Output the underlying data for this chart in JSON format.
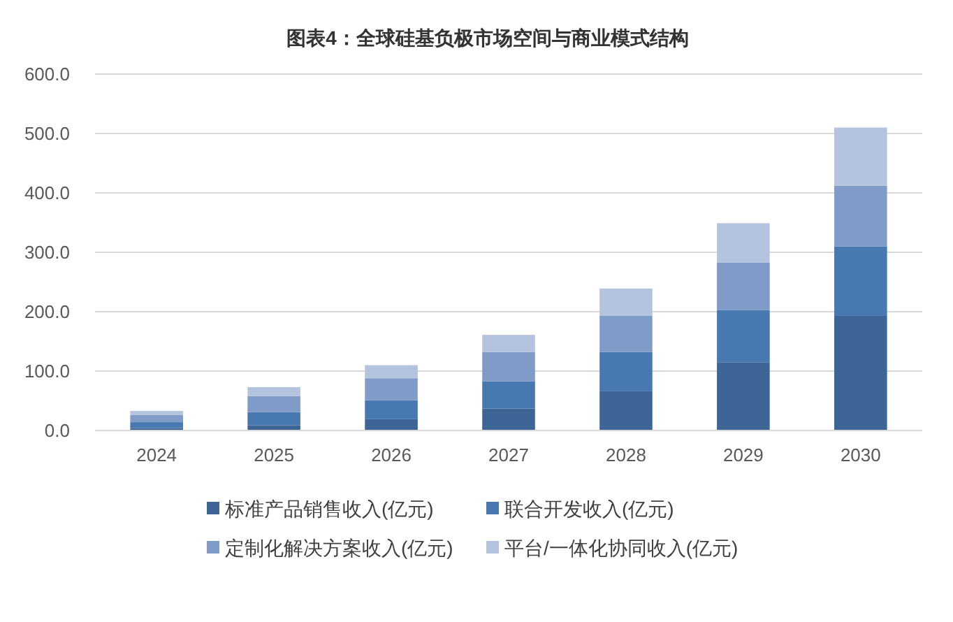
{
  "chart_data": {
    "type": "bar",
    "title": "图表4：全球硅基负极市场空间与商业模式结构",
    "categories": [
      "2024",
      "2025",
      "2026",
      "2027",
      "2028",
      "2029",
      "2030"
    ],
    "stacked": true,
    "ylim": [
      0,
      600
    ],
    "yticks": [
      {
        "value": 0,
        "label": "0.0"
      },
      {
        "value": 100,
        "label": "100.0"
      },
      {
        "value": 200,
        "label": "200.0"
      },
      {
        "value": 300,
        "label": "300.0"
      },
      {
        "value": 400,
        "label": "400.0"
      },
      {
        "value": 500,
        "label": "500.0"
      },
      {
        "value": 600,
        "label": "600.0"
      }
    ],
    "grid": "y",
    "legend": "bottom",
    "series": [
      {
        "name": "标准产品销售收入(亿元)",
        "color": "#3d6696",
        "values": [
          4,
          9,
          19,
          37,
          66,
          115,
          193
        ]
      },
      {
        "name": "联合开发收入(亿元)",
        "color": "#4878b0",
        "values": [
          10,
          22,
          32,
          46,
          66,
          88,
          117
        ]
      },
      {
        "name": "定制化解决方案收入(亿元)",
        "color": "#7f9cc8",
        "values": [
          12,
          27,
          37,
          49,
          61,
          80,
          102
        ]
      },
      {
        "name": "平台/一体化协同收入(亿元)",
        "color": "#b4c3de",
        "values": [
          7,
          15,
          22,
          29,
          46,
          66,
          98
        ]
      }
    ]
  }
}
